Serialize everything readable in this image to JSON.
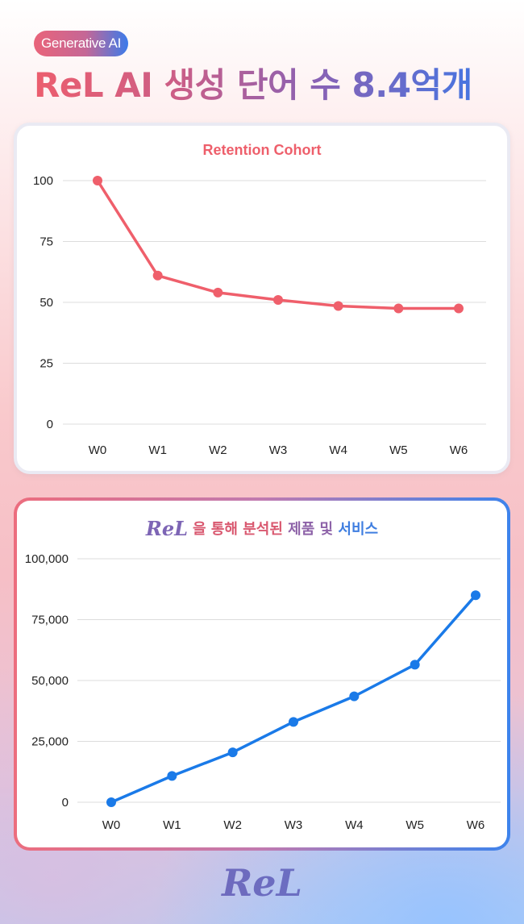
{
  "header": {
    "badge": "Generative AI",
    "title": "ReL AI 생성 단어 수 8.4억개"
  },
  "card_retention": {
    "title": "Retention Cohort"
  },
  "card_products": {
    "logo": "ReL",
    "title_parts": [
      "을 통해 ",
      "분석된 ",
      "제품 및 ",
      "서비스"
    ]
  },
  "footer": {
    "logo": "ReL"
  },
  "colors": {
    "retention_line": "#ef5f6b",
    "products_line": "#1a7ae8",
    "grid": "#dcdcdc"
  },
  "chart_data": [
    {
      "type": "line",
      "title": "Retention Cohort",
      "categories": [
        "W0",
        "W1",
        "W2",
        "W3",
        "W4",
        "W5",
        "W6"
      ],
      "series": [
        {
          "values": [
            100,
            61,
            54,
            51,
            48.5,
            47.5,
            47.5
          ]
        }
      ],
      "yticks": [
        "0",
        "25",
        "50",
        "75",
        "100"
      ],
      "ylim": [
        0,
        100
      ],
      "grid": true,
      "legend": "none"
    },
    {
      "type": "line",
      "title": "ReL 을 통해 분석된 제품 및 서비스",
      "categories": [
        "W0",
        "W1",
        "W2",
        "W3",
        "W4",
        "W5",
        "W6"
      ],
      "series": [
        {
          "values": [
            0,
            10800,
            20500,
            33000,
            43500,
            56500,
            85000
          ]
        }
      ],
      "yticks": [
        "0",
        "25,000",
        "50,000",
        "75,000",
        "100,000"
      ],
      "ylim": [
        0,
        100000
      ],
      "grid": true,
      "legend": "none"
    }
  ]
}
